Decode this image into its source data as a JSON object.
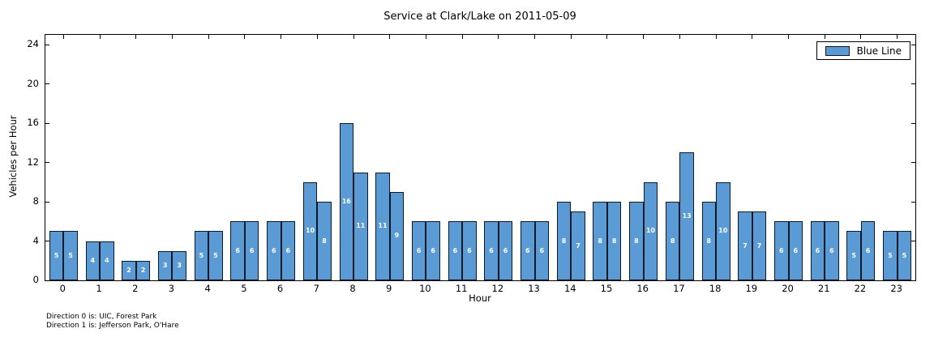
{
  "figure": {
    "title": "Service at Clark/Lake on 2011-05-09",
    "xlabel": "Hour",
    "ylabel": "Vehicles per Hour",
    "legend_label": "Blue Line",
    "footnotes": [
      "Direction 0 is: UIC, Forest Park",
      "Direction 1 is: Jefferson Park, O'Hare"
    ]
  },
  "colors": {
    "bar_fill": "#5B9BD5",
    "bar_edge": "#0d1a26",
    "bar_value_text": "#ffffff",
    "axis": "#000000",
    "background": "#ffffff"
  },
  "chart_data": {
    "type": "bar",
    "title": "Service at Clark/Lake on 2011-05-09",
    "xlabel": "Hour",
    "ylabel": "Vehicles per Hour",
    "categories": [
      0,
      1,
      2,
      3,
      4,
      5,
      6,
      7,
      8,
      9,
      10,
      11,
      12,
      13,
      14,
      15,
      16,
      17,
      18,
      19,
      20,
      21,
      22,
      23
    ],
    "series": [
      {
        "name": "Direction 0 (UIC, Forest Park)",
        "values": [
          5,
          4,
          2,
          3,
          5,
          6,
          6,
          10,
          16,
          11,
          6,
          6,
          6,
          6,
          8,
          8,
          8,
          8,
          8,
          7,
          6,
          6,
          5,
          5
        ]
      },
      {
        "name": "Direction 1 (Jefferson Park, O'Hare)",
        "values": [
          5,
          4,
          2,
          3,
          5,
          6,
          6,
          8,
          11,
          9,
          6,
          6,
          6,
          6,
          7,
          8,
          10,
          13,
          10,
          7,
          6,
          6,
          6,
          5
        ]
      }
    ],
    "bar_value_labels": true,
    "ylim": [
      0,
      25
    ],
    "yticks": [
      0,
      4,
      8,
      12,
      16,
      20,
      24
    ],
    "grid": false,
    "legend_entries": [
      "Blue Line"
    ],
    "legend_position": "upper right"
  }
}
